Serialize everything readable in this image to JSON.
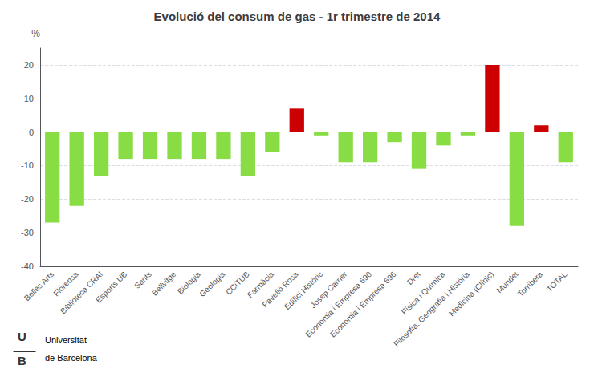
{
  "chart_data": {
    "type": "bar",
    "title": "Evolució del consum de gas - 1r trimestre de 2014",
    "y_label": "%",
    "categories": [
      "Belles Arts",
      "Florensa",
      "Biblioteca CRAI",
      "Esports UB",
      "Sants",
      "Bellvitge",
      "Biologia",
      "Geologia",
      "CCiTUB",
      "Farmàcia",
      "Pavelló Rosa",
      "Edifici Històric",
      "Josep Carner",
      "Economia i Empresa 690",
      "Economia i Empresa 696",
      "Dret",
      "Física i Química",
      "Filosofia, Geografia i Història",
      "Medicina (Clínic)",
      "Mundet",
      "Torribera",
      "TOTAL"
    ],
    "values": [
      -27,
      -22,
      -13,
      -8,
      -8,
      -8,
      -8,
      -8,
      -13,
      -6,
      7,
      -1,
      -9,
      -9,
      -3,
      -11,
      -4,
      -1,
      20,
      -28,
      2,
      -9
    ],
    "colors": [
      "#88dd44",
      "#88dd44",
      "#88dd44",
      "#88dd44",
      "#88dd44",
      "#88dd44",
      "#88dd44",
      "#88dd44",
      "#88dd44",
      "#88dd44",
      "#cc0000",
      "#88dd44",
      "#88dd44",
      "#88dd44",
      "#88dd44",
      "#88dd44",
      "#88dd44",
      "#88dd44",
      "#cc0000",
      "#88dd44",
      "#cc0000",
      "#88dd44"
    ],
    "ylim": [
      -40,
      25
    ],
    "yticks": [
      -40,
      -30,
      -20,
      -10,
      0,
      10,
      20
    ],
    "grid": true,
    "annotations": [
      "U",
      "B",
      "Universitat",
      "de Barcelona"
    ]
  }
}
